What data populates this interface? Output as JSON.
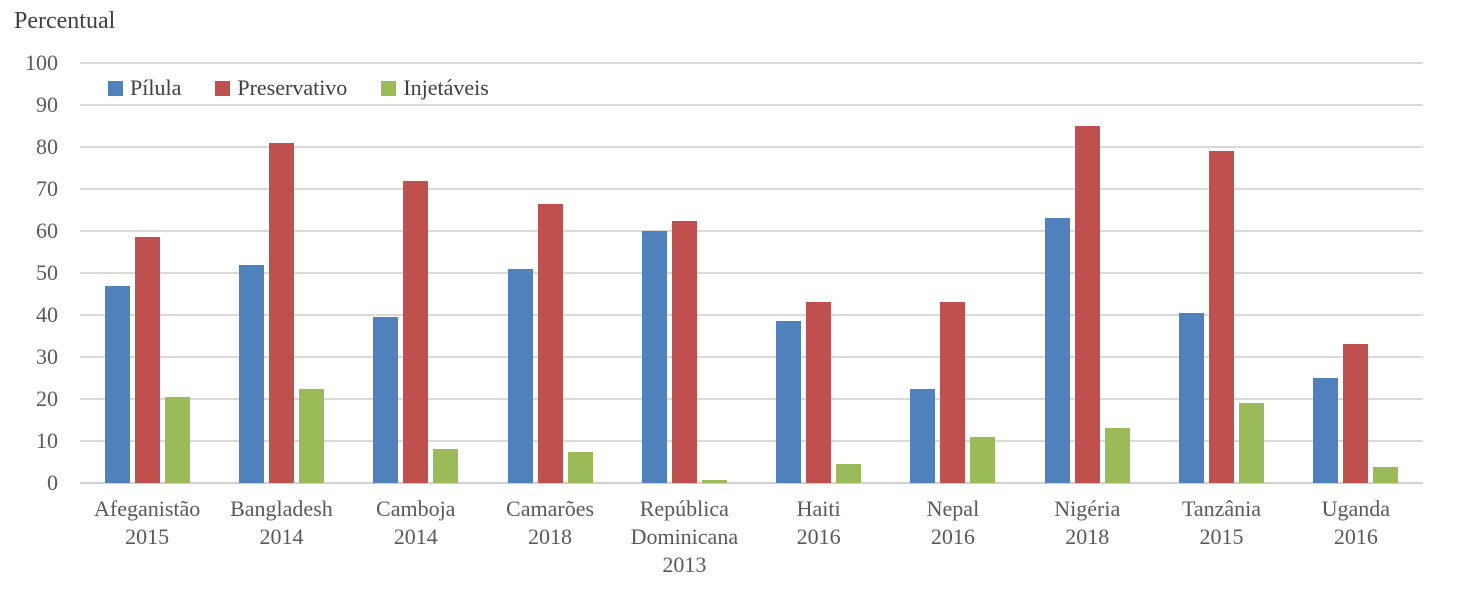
{
  "chart_data": {
    "type": "bar",
    "title": "Percentual",
    "categories": [
      {
        "name": "Afeganistão",
        "year": "2015"
      },
      {
        "name": "Bangladesh",
        "year": "2014"
      },
      {
        "name": "Camboja",
        "year": "2014"
      },
      {
        "name": "Camarões",
        "year": "2018"
      },
      {
        "name": "República Dominicana",
        "year": "2013"
      },
      {
        "name": "Haiti",
        "year": "2016"
      },
      {
        "name": "Nepal",
        "year": "2016"
      },
      {
        "name": "Nigéria",
        "year": "2018"
      },
      {
        "name": "Tanzânia",
        "year": "2015"
      },
      {
        "name": "Uganda",
        "year": "2016"
      }
    ],
    "series": [
      {
        "name": "Pílula",
        "color": "#4F81BD",
        "values": [
          47,
          52,
          39.5,
          51,
          60,
          38.5,
          22.5,
          63,
          40.5,
          25
        ]
      },
      {
        "name": "Preservativo",
        "color": "#C0504D",
        "values": [
          58.5,
          81,
          72,
          66.5,
          62.5,
          43,
          43,
          85,
          79,
          33
        ]
      },
      {
        "name": "Injetáveis",
        "color": "#9BBB59",
        "values": [
          20.5,
          22.5,
          8,
          7.5,
          0.7,
          4.5,
          11,
          13,
          19,
          3.8
        ]
      }
    ],
    "ylabel": "Percentual",
    "ylim": [
      0,
      100
    ],
    "ytick_step": 10,
    "yticks": [
      "0",
      "10",
      "20",
      "30",
      "40",
      "50",
      "60",
      "70",
      "80",
      "90",
      "100"
    ],
    "grid": true,
    "legend_position": "top-left-inside"
  },
  "colors": {
    "gridline": "#D9D9D9",
    "axis_text": "#595959",
    "title_text": "#404040",
    "legend_text": "#404040",
    "background": "#FFFFFF"
  }
}
